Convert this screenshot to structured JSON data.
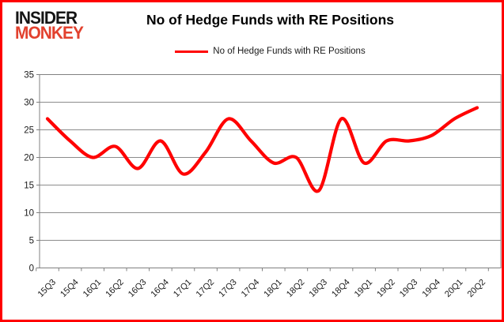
{
  "branding": {
    "logo_line1": "INSIDER",
    "logo_line2": "MONKEY"
  },
  "header": {
    "title": "No of Hedge Funds with RE Positions"
  },
  "legend": {
    "label": "No of Hedge Funds with RE Positions",
    "line_color": "#ff0000"
  },
  "colors": {
    "border": "#ff0000",
    "grid": "#8c8c8c",
    "axis": "#808080",
    "series": "#ff0000",
    "tick_text": "#1a1a1a",
    "logo_black": "#151515",
    "logo_red": "#e2412e"
  },
  "chart_data": {
    "type": "line",
    "title": "No of Hedge Funds with RE Positions",
    "categories": [
      "15Q3",
      "15Q4",
      "16Q1",
      "16Q2",
      "16Q3",
      "16Q4",
      "17Q1",
      "17Q2",
      "17Q3",
      "17Q4",
      "18Q1",
      "18Q2",
      "18Q3",
      "18Q4",
      "19Q1",
      "19Q2",
      "19Q3",
      "19Q4",
      "20Q1",
      "20Q2"
    ],
    "series": [
      {
        "name": "No of Hedge Funds with RE Positions",
        "color": "#ff0000",
        "values": [
          27,
          23,
          20,
          22,
          18,
          23,
          17,
          21,
          27,
          23,
          19,
          20,
          14,
          27,
          19,
          23,
          23,
          24,
          27,
          29
        ]
      }
    ],
    "xlabel": "",
    "ylabel": "",
    "ylim": [
      0,
      35
    ],
    "yticks": [
      0,
      5,
      10,
      15,
      20,
      25,
      30,
      35
    ],
    "grid": true,
    "legend_position": "top",
    "line_smoothing": true
  }
}
